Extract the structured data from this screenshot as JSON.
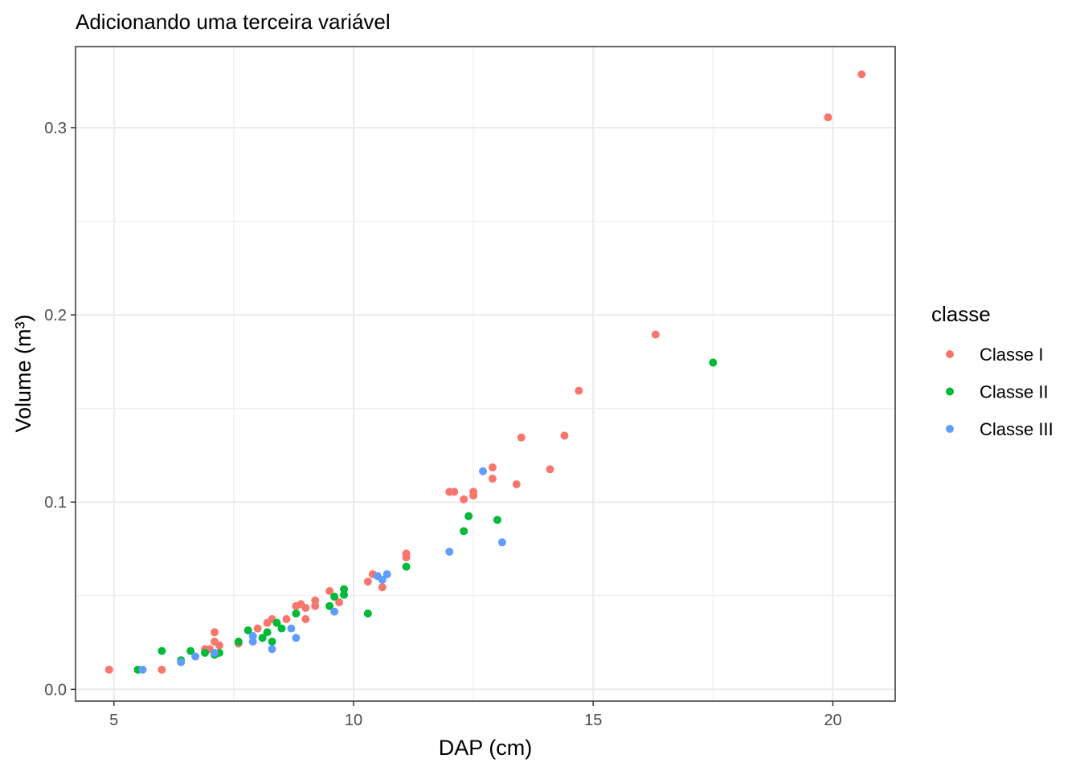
{
  "chart_data": {
    "type": "scatter",
    "title": "Adicionando uma terceira variável",
    "xlabel": "DAP (cm)",
    "ylabel": "Volume (m³)",
    "xlim": [
      4.2,
      21.3
    ],
    "ylim": [
      -0.0063,
      0.3433
    ],
    "x_ticks": [
      5,
      10,
      15,
      20
    ],
    "x_tick_labels": [
      "5",
      "10",
      "15",
      "20"
    ],
    "y_ticks": [
      0.0,
      0.1,
      0.2,
      0.3
    ],
    "y_tick_labels": [
      "0.0",
      "0.1",
      "0.2",
      "0.3"
    ],
    "x_minor": [
      7.5,
      12.5,
      17.5
    ],
    "y_minor": [
      0.05,
      0.15,
      0.25
    ],
    "grid": true,
    "legend": {
      "title": "classe",
      "position": "right"
    },
    "series": [
      {
        "name": "Classe I",
        "color": "#F8766D",
        "points": [
          [
            4.9,
            0.0105
          ],
          [
            6.0,
            0.0105
          ],
          [
            6.9,
            0.0215
          ],
          [
            7.0,
            0.0215
          ],
          [
            7.1,
            0.0255
          ],
          [
            7.1,
            0.0305
          ],
          [
            7.2,
            0.0235
          ],
          [
            7.6,
            0.0245
          ],
          [
            8.0,
            0.0325
          ],
          [
            8.2,
            0.0355
          ],
          [
            8.3,
            0.0375
          ],
          [
            8.6,
            0.0375
          ],
          [
            8.8,
            0.0445
          ],
          [
            8.9,
            0.0455
          ],
          [
            9.0,
            0.0435
          ],
          [
            9.0,
            0.0375
          ],
          [
            9.2,
            0.0475
          ],
          [
            9.2,
            0.0445
          ],
          [
            9.5,
            0.0525
          ],
          [
            9.7,
            0.0465
          ],
          [
            10.3,
            0.0575
          ],
          [
            10.4,
            0.0615
          ],
          [
            10.6,
            0.0545
          ],
          [
            11.1,
            0.0725
          ],
          [
            11.1,
            0.0705
          ],
          [
            12.0,
            0.1055
          ],
          [
            12.1,
            0.1055
          ],
          [
            12.3,
            0.1015
          ],
          [
            12.5,
            0.1035
          ],
          [
            12.5,
            0.1055
          ],
          [
            12.9,
            0.1185
          ],
          [
            12.9,
            0.1125
          ],
          [
            13.4,
            0.1095
          ],
          [
            13.5,
            0.1345
          ],
          [
            14.1,
            0.1175
          ],
          [
            14.4,
            0.1355
          ],
          [
            14.7,
            0.1595
          ],
          [
            16.3,
            0.1895
          ],
          [
            19.9,
            0.3055
          ],
          [
            20.6,
            0.3285
          ]
        ]
      },
      {
        "name": "Classe II",
        "color": "#00BA38",
        "points": [
          [
            5.5,
            0.0105
          ],
          [
            6.0,
            0.0205
          ],
          [
            6.4,
            0.0155
          ],
          [
            6.6,
            0.0205
          ],
          [
            6.9,
            0.0195
          ],
          [
            7.1,
            0.0185
          ],
          [
            7.2,
            0.0195
          ],
          [
            7.6,
            0.0255
          ],
          [
            7.8,
            0.0315
          ],
          [
            8.1,
            0.0275
          ],
          [
            8.2,
            0.0305
          ],
          [
            8.3,
            0.0255
          ],
          [
            8.4,
            0.0355
          ],
          [
            8.5,
            0.0325
          ],
          [
            8.8,
            0.0405
          ],
          [
            9.5,
            0.0445
          ],
          [
            9.6,
            0.0495
          ],
          [
            9.8,
            0.0505
          ],
          [
            9.8,
            0.0535
          ],
          [
            10.3,
            0.0405
          ],
          [
            11.1,
            0.0655
          ],
          [
            12.3,
            0.0845
          ],
          [
            12.4,
            0.0925
          ],
          [
            13.0,
            0.0905
          ],
          [
            17.5,
            0.1745
          ]
        ]
      },
      {
        "name": "Classe III",
        "color": "#619CFF",
        "points": [
          [
            5.6,
            0.0105
          ],
          [
            6.4,
            0.0145
          ],
          [
            6.7,
            0.0175
          ],
          [
            7.1,
            0.0195
          ],
          [
            7.9,
            0.0285
          ],
          [
            7.9,
            0.0255
          ],
          [
            8.3,
            0.0215
          ],
          [
            8.7,
            0.0325
          ],
          [
            8.8,
            0.0275
          ],
          [
            9.6,
            0.0415
          ],
          [
            10.5,
            0.0605
          ],
          [
            10.6,
            0.0585
          ],
          [
            10.7,
            0.0615
          ],
          [
            12.0,
            0.0735
          ],
          [
            12.7,
            0.1165
          ],
          [
            13.1,
            0.0785
          ]
        ]
      }
    ]
  }
}
